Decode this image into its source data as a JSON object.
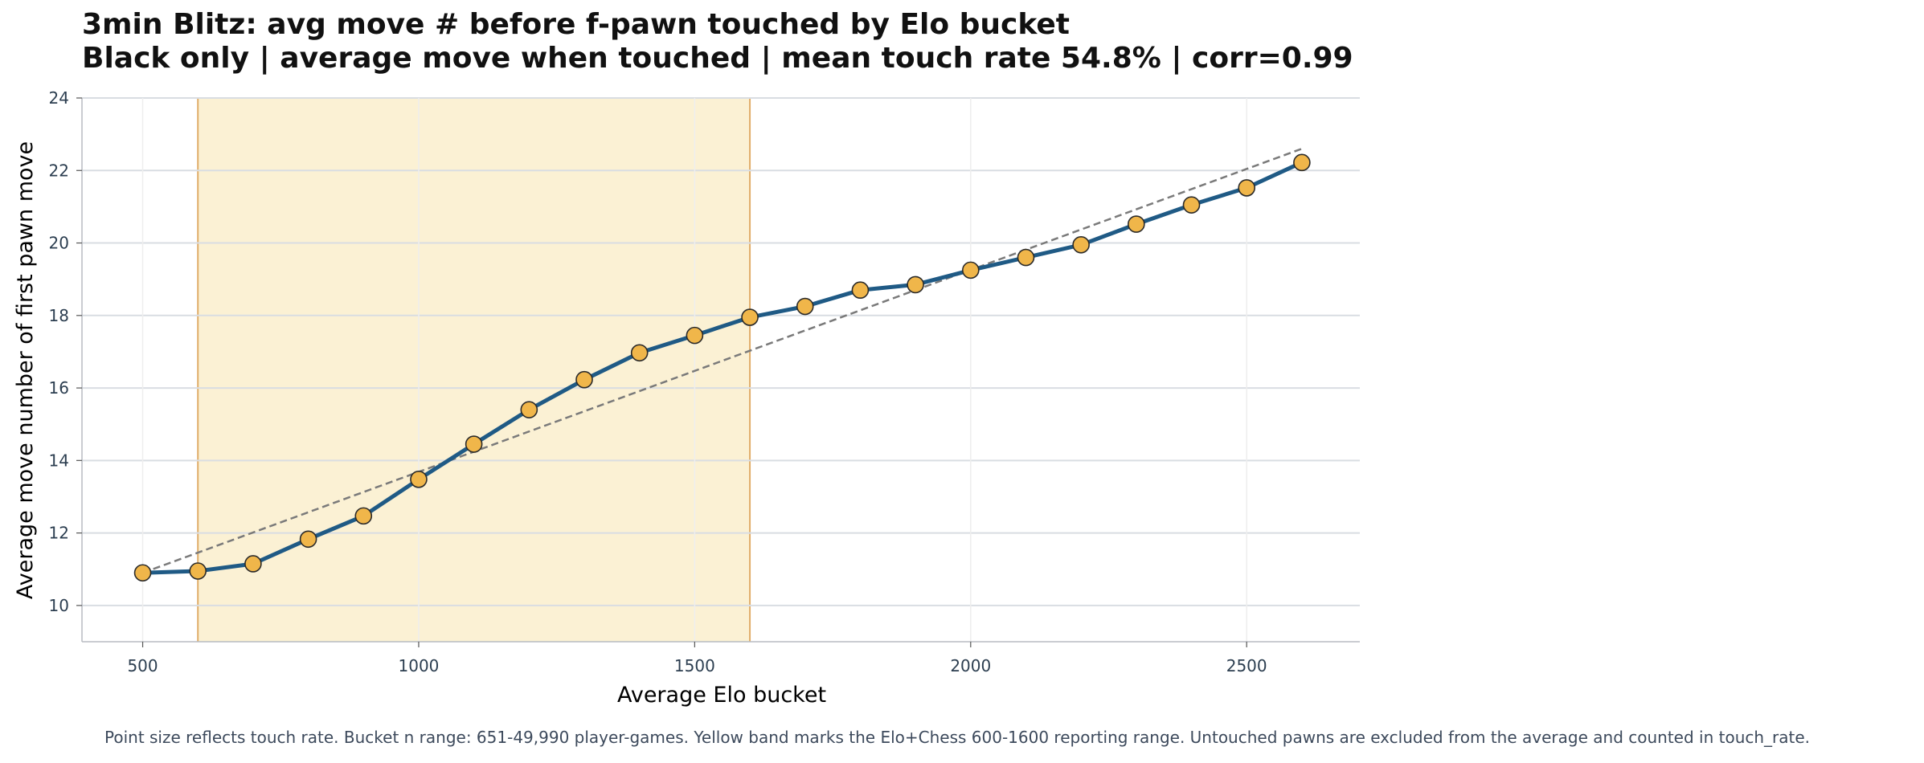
{
  "chart_data": {
    "type": "line",
    "title": "3min Blitz: avg move # before f-pawn touched by Elo bucket",
    "subtitle": "Black only | average move when touched | mean touch rate 54.8% | corr=0.99",
    "xlabel": "Average Elo bucket",
    "ylabel": "Average move number of first pawn move",
    "xlim": [
      390,
      2705
    ],
    "ylim": [
      9,
      24
    ],
    "xticks": [
      500,
      1000,
      1500,
      2000,
      2500
    ],
    "yticks": [
      10,
      12,
      14,
      16,
      18,
      20,
      22,
      24
    ],
    "grid": true,
    "band": {
      "x_start": 600,
      "x_end": 1600,
      "color": "#fbf1d4",
      "edge_color": "#e0ad6a"
    },
    "series": [
      {
        "x": [
          500,
          600,
          700,
          800,
          900,
          1000,
          1100,
          1200,
          1300,
          1400,
          1500,
          1600,
          1700,
          1800,
          1900,
          2000,
          2100,
          2200,
          2300,
          2400,
          2500,
          2600
        ],
        "values": [
          10.9,
          10.95,
          11.15,
          11.83,
          12.47,
          13.48,
          14.45,
          15.4,
          16.23,
          16.97,
          17.45,
          17.95,
          18.25,
          18.7,
          18.85,
          19.25,
          19.6,
          19.95,
          20.52,
          21.05,
          21.52,
          22.22
        ],
        "color": "#1f5a85",
        "marker_color": "#f0b64a"
      }
    ],
    "trendline": {
      "x": [
        500,
        2600
      ],
      "y": [
        10.9,
        22.6
      ],
      "color": "#7a7a7a",
      "style": "dashed"
    }
  },
  "footnote": "Point size reflects touch rate. Bucket n range: 651-49,990 player-games. Yellow band marks the Elo+Chess 600-1600 reporting range. Untouched pawns are excluded from the average and counted in touch_rate."
}
